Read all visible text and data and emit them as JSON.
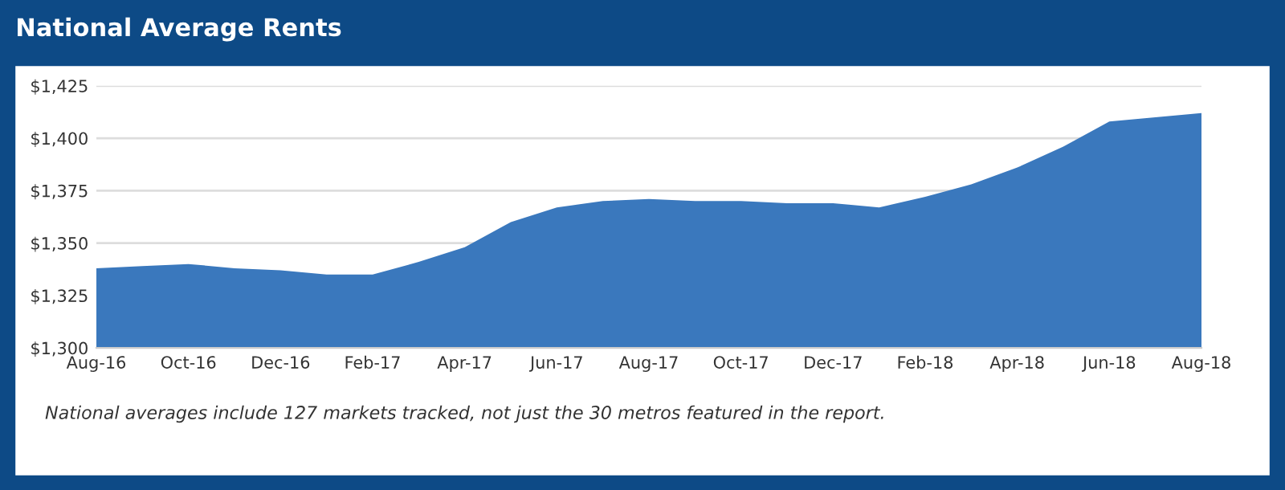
{
  "chart_data": {
    "type": "area",
    "title": "National Average Rents",
    "categories": [
      "Aug-16",
      null,
      "Oct-16",
      null,
      "Dec-16",
      null,
      "Feb-17",
      null,
      "Apr-17",
      null,
      "Jun-17",
      null,
      "Aug-17",
      null,
      "Oct-17",
      null,
      "Dec-17",
      null,
      "Feb-18",
      null,
      "Apr-18",
      null,
      "Jun-18",
      null,
      "Aug-18"
    ],
    "series": [
      {
        "color": "#3a78bd",
        "values": [
          1338,
          1339,
          1340,
          1338,
          1337,
          1335,
          1335,
          1341,
          1348,
          1360,
          1367,
          1370,
          1371,
          1370,
          1370,
          1369,
          1369,
          1367,
          1372,
          1378,
          1386,
          1396,
          1408,
          1410,
          1412
        ]
      }
    ],
    "ylim": [
      1300,
      1425
    ],
    "yticks": [
      {
        "value": 1300,
        "label": "$1,300"
      },
      {
        "value": 1325,
        "label": "$1,325"
      },
      {
        "value": 1350,
        "label": "$1,350"
      },
      {
        "value": 1375,
        "label": "$1,375"
      },
      {
        "value": 1400,
        "label": "$1,400"
      },
      {
        "value": 1425,
        "label": "$1,425"
      }
    ],
    "grid": "y",
    "annotations": [
      "National averages include 127 markets tracked, not just the 30 metros featured in the report."
    ]
  }
}
